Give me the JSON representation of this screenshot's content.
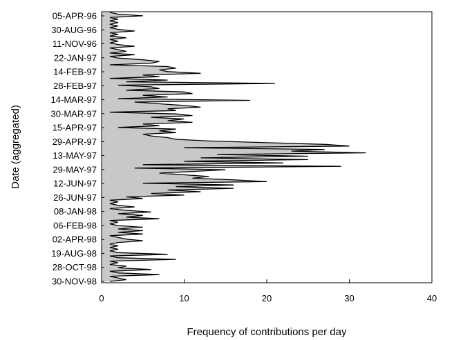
{
  "chart_data": {
    "type": "area",
    "orientation": "horizontal",
    "title": "",
    "xlabel": "Frequency of contributions per day",
    "ylabel": "Date (aggregated)",
    "xlim": [
      0,
      40
    ],
    "x_ticks": [
      0,
      10,
      20,
      30,
      40
    ],
    "y_tick_labels": [
      "05-APR-96",
      "30-AUG-96",
      "11-NOV-96",
      "22-JAN-97",
      "14-FEB-97",
      "28-FEB-97",
      "14-MAR-97",
      "30-MAR-97",
      "15-APR-97",
      "29-APR-97",
      "13-MAY-97",
      "29-MAY-97",
      "12-JUN-97",
      "26-JUN-97",
      "08-JAN-98",
      "06-FEB-98",
      "02-APR-98",
      "19-AUG-98",
      "28-OCT-98",
      "30-NOV-98"
    ],
    "series": [
      {
        "values": [
          1,
          2,
          5,
          1,
          2,
          1,
          2,
          1,
          2,
          1,
          2,
          4,
          1,
          2,
          1,
          3,
          1,
          2,
          1,
          2,
          4,
          1,
          2,
          3,
          1,
          4,
          1,
          2,
          5,
          7,
          6,
          1,
          8,
          9,
          7,
          8,
          12,
          5,
          7,
          1,
          8,
          3,
          21,
          2,
          6,
          7,
          3,
          10,
          11,
          5,
          8,
          2,
          18,
          4,
          7,
          10,
          12,
          8,
          9,
          1,
          9,
          11,
          6,
          10,
          8,
          11,
          5,
          7,
          2,
          9,
          7,
          9,
          5,
          6,
          8,
          9,
          13,
          20,
          27,
          30,
          10,
          27,
          23,
          32,
          14,
          25,
          12,
          25,
          10,
          22,
          5,
          29,
          4,
          15,
          11,
          7,
          10,
          13,
          11,
          16,
          20,
          5,
          16,
          9,
          16,
          8,
          12,
          6,
          10,
          3,
          5,
          1,
          2,
          1,
          2,
          4,
          1,
          3,
          6,
          2,
          5,
          3,
          7,
          1,
          2,
          1,
          2,
          5,
          2,
          5,
          2,
          5,
          1,
          2,
          3,
          5,
          2,
          1,
          2,
          1,
          2,
          1,
          2,
          8,
          1,
          2,
          9,
          1,
          2,
          1,
          3,
          2,
          6,
          1,
          2,
          7,
          1,
          2,
          3,
          1
        ]
      }
    ],
    "grid": false,
    "legend": "none"
  }
}
